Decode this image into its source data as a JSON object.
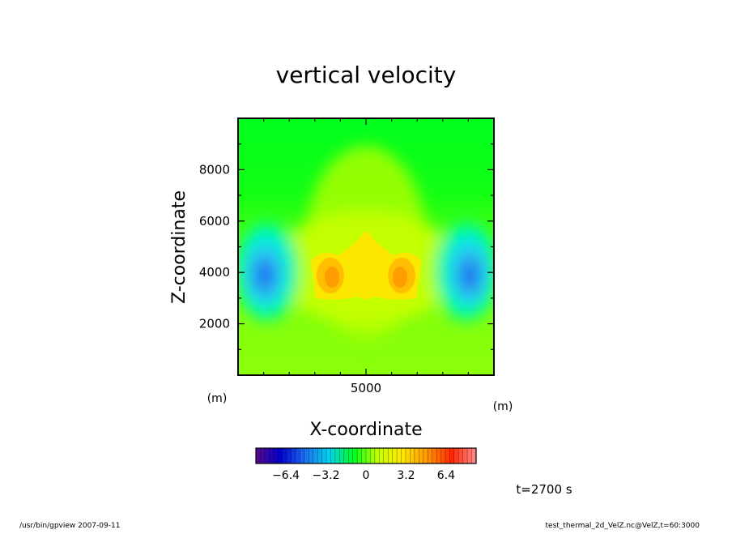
{
  "chart_data": {
    "type": "heatmap",
    "title": "vertical velocity",
    "xlabel": "X-coordinate",
    "ylabel": "Z-coordinate",
    "x_unit": "(m)",
    "y_unit": "(m)",
    "xlim": [
      0,
      10000
    ],
    "ylim": [
      0,
      10000
    ],
    "x_ticks": [
      5000
    ],
    "x_tick_labels": [
      "5000"
    ],
    "y_ticks": [
      2000,
      4000,
      6000,
      8000
    ],
    "y_tick_labels": [
      "2000",
      "4000",
      "6000",
      "8000"
    ],
    "colorbar": {
      "range": [
        -8.8,
        8.8
      ],
      "ticks": [
        -6.4,
        -3.2,
        0,
        3.2,
        6.4
      ],
      "tick_labels": [
        "−6.4",
        "−3.2",
        "0",
        "3.2",
        "6.4"
      ],
      "colors": [
        "#5a0a8c",
        "#0000cd",
        "#1e6ef0",
        "#00d2f0",
        "#00ff1e",
        "#c8ff00",
        "#ffe600",
        "#ff9600",
        "#ff2800",
        "#ff8c8c"
      ]
    },
    "features": [
      {
        "name": "downdraft-left",
        "x": 1000,
        "z": 4000,
        "value": -5.0
      },
      {
        "name": "updraft-left",
        "x": 3700,
        "z": 3900,
        "value": 2.5
      },
      {
        "name": "updraft-right",
        "x": 6300,
        "z": 3900,
        "value": 2.5
      },
      {
        "name": "downdraft-right",
        "x": 9000,
        "z": 4000,
        "value": -5.0
      }
    ],
    "time_label": "t=2700 s"
  },
  "footer": {
    "left": "/usr/bin/gpview   2007-09-11",
    "right": "test_thermal_2d_VelZ.nc@VelZ,t=60:3000"
  }
}
